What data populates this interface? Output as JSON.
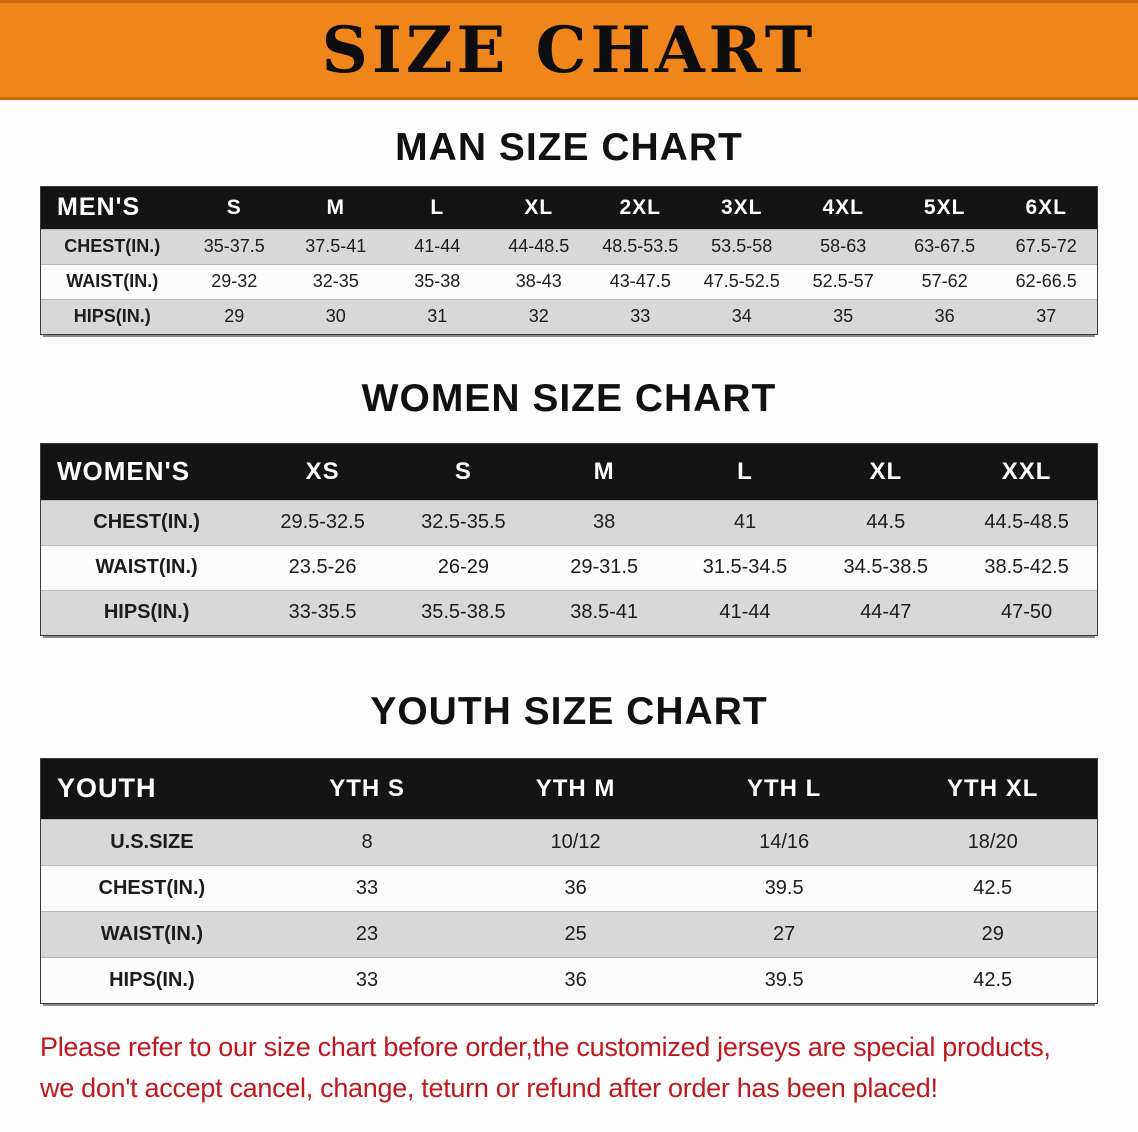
{
  "banner": {
    "title": "SIZE CHART"
  },
  "sections": [
    {
      "id": "men",
      "heading": "MAN SIZE CHART",
      "table": {
        "header": [
          "MEN'S",
          "S",
          "M",
          "L",
          "XL",
          "2XL",
          "3XL",
          "4XL",
          "5XL",
          "6XL"
        ],
        "rows": [
          [
            "CHEST(IN.)",
            "35-37.5",
            "37.5-41",
            "41-44",
            "44-48.5",
            "48.5-53.5",
            "53.5-58",
            "58-63",
            "63-67.5",
            "67.5-72"
          ],
          [
            "WAIST(IN.)",
            "29-32",
            "32-35",
            "35-38",
            "38-43",
            "43-47.5",
            "47.5-52.5",
            "52.5-57",
            "57-62",
            "62-66.5"
          ],
          [
            "HIPS(IN.)",
            "29",
            "30",
            "31",
            "32",
            "33",
            "34",
            "35",
            "36",
            "37"
          ]
        ]
      }
    },
    {
      "id": "women",
      "heading": "WOMEN SIZE CHART",
      "table": {
        "header": [
          "WOMEN'S",
          "XS",
          "S",
          "M",
          "L",
          "XL",
          "XXL"
        ],
        "rows": [
          [
            "CHEST(IN.)",
            "29.5-32.5",
            "32.5-35.5",
            "38",
            "41",
            "44.5",
            "44.5-48.5"
          ],
          [
            "WAIST(IN.)",
            "23.5-26",
            "26-29",
            "29-31.5",
            "31.5-34.5",
            "34.5-38.5",
            "38.5-42.5"
          ],
          [
            "HIPS(IN.)",
            "33-35.5",
            "35.5-38.5",
            "38.5-41",
            "41-44",
            "44-47",
            "47-50"
          ]
        ]
      }
    },
    {
      "id": "youth",
      "heading": "YOUTH SIZE CHART",
      "table": {
        "header": [
          "YOUTH",
          "YTH S",
          "YTH M",
          "YTH L",
          "YTH XL"
        ],
        "rows": [
          [
            "U.S.SIZE",
            "8",
            "10/12",
            "14/16",
            "18/20"
          ],
          [
            "CHEST(IN.)",
            "33",
            "36",
            "39.5",
            "42.5"
          ],
          [
            "WAIST(IN.)",
            "23",
            "25",
            "27",
            "29"
          ],
          [
            "HIPS(IN.)",
            "33",
            "36",
            "39.5",
            "42.5"
          ]
        ]
      }
    }
  ],
  "footer": {
    "line1": "Please refer to our size chart before order,the customized jerseys are special products,",
    "line2": "we don't accept cancel, change, teturn or refund after order has been placed!"
  },
  "colors": {
    "banner_bg": "#f0851c",
    "banner_border": "#cf6c0e",
    "table_header_bg": "#141414",
    "alt_row_bg": "#d8d8d8",
    "footer_text": "#c0181c"
  }
}
